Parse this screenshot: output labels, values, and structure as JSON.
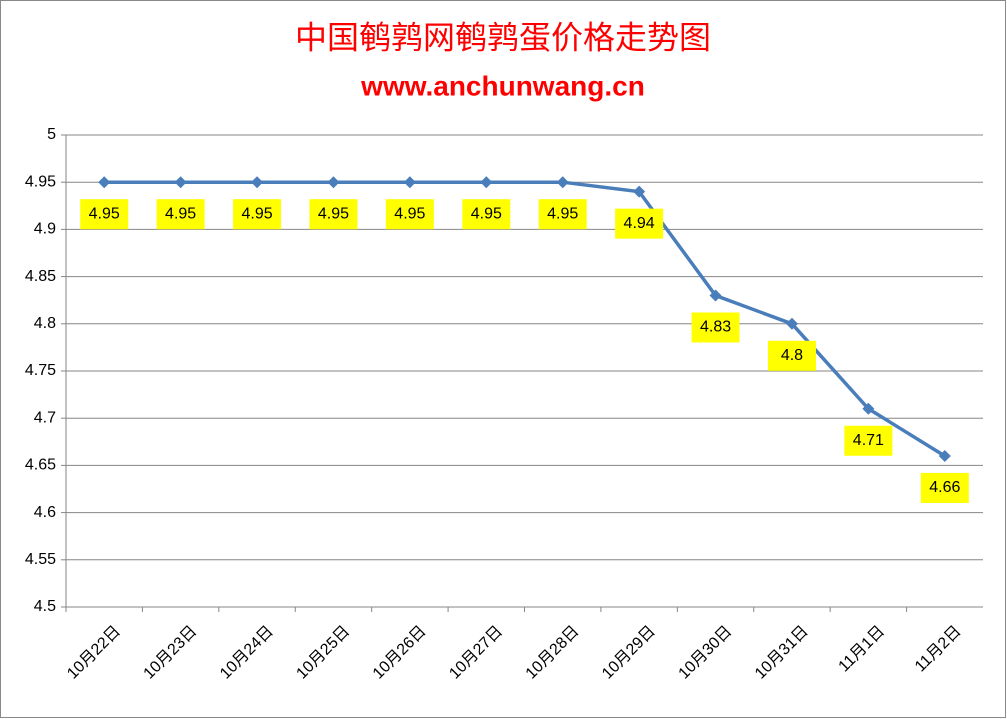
{
  "chart_data": {
    "type": "line",
    "title": "中国鹌鹑网鹌鹑蛋价格走势图",
    "subtitle": "www.anchunwang.cn",
    "categories": [
      "10月22日",
      "10月23日",
      "10月24日",
      "10月25日",
      "10月26日",
      "10月27日",
      "10月28日",
      "10月29日",
      "10月30日",
      "10月31日",
      "11月1日",
      "11月2日"
    ],
    "series": [
      {
        "name": "鹌鹑蛋价格",
        "color": "#4a7ebb",
        "values": [
          4.95,
          4.95,
          4.95,
          4.95,
          4.95,
          4.95,
          4.95,
          4.94,
          4.83,
          4.8,
          4.71,
          4.66
        ]
      }
    ],
    "ylim": [
      4.5,
      5
    ],
    "yticks": [
      4.5,
      4.55,
      4.6,
      4.65,
      4.7,
      4.75,
      4.8,
      4.85,
      4.9,
      4.95,
      5
    ],
    "grid": true,
    "label_color": "#ffff00"
  }
}
